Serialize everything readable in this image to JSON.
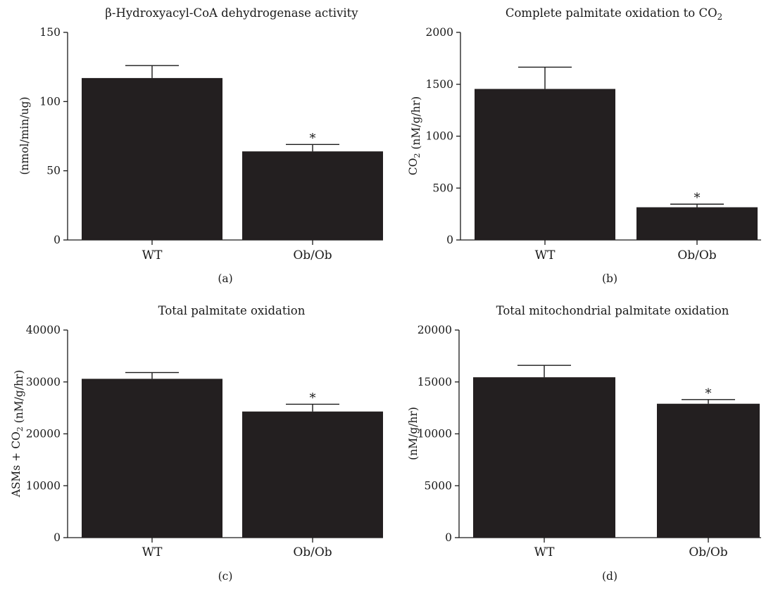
{
  "chart_data": [
    {
      "id": "a",
      "type": "bar",
      "title": "β-Hydroxyacyl-CoA dehydrogenase activity",
      "ylabel": "(nmol/min/ug)",
      "panel_label": "(a)",
      "categories": [
        "WT",
        "Ob/Ob"
      ],
      "values": [
        117,
        64
      ],
      "errors": [
        9,
        5
      ],
      "significance": [
        "",
        "*"
      ],
      "ylim": [
        0,
        150
      ],
      "yticks": [
        0,
        50,
        100,
        150
      ]
    },
    {
      "id": "b",
      "type": "bar",
      "title": "Complete palmitate oxidation to CO₂",
      "ylabel": "CO₂ (nM/g/hr)",
      "panel_label": "(b)",
      "categories": [
        "WT",
        "Ob/Ob"
      ],
      "values": [
        1455,
        315
      ],
      "errors": [
        210,
        30
      ],
      "significance": [
        "",
        "*"
      ],
      "ylim": [
        0,
        2000
      ],
      "yticks": [
        0,
        500,
        1000,
        1500,
        2000
      ]
    },
    {
      "id": "c",
      "type": "bar",
      "title": "Total palmitate oxidation",
      "ylabel": "ASMs + CO₂ (nM/g/hr)",
      "panel_label": "(c)",
      "categories": [
        "WT",
        "Ob/Ob"
      ],
      "values": [
        30600,
        24300
      ],
      "errors": [
        1200,
        1400
      ],
      "significance": [
        "",
        "*"
      ],
      "ylim": [
        0,
        40000
      ],
      "yticks": [
        0,
        10000,
        20000,
        30000,
        40000
      ]
    },
    {
      "id": "d",
      "type": "bar",
      "title": "Total mitochondrial palmitate oxidation",
      "ylabel": "(nM/g/hr)",
      "panel_label": "(d)",
      "categories": [
        "WT",
        "Ob/Ob"
      ],
      "values": [
        15450,
        12900
      ],
      "errors": [
        1150,
        400
      ],
      "significance": [
        "",
        "*"
      ],
      "ylim": [
        0,
        20000
      ],
      "yticks": [
        0,
        5000,
        10000,
        15000,
        20000
      ]
    }
  ]
}
